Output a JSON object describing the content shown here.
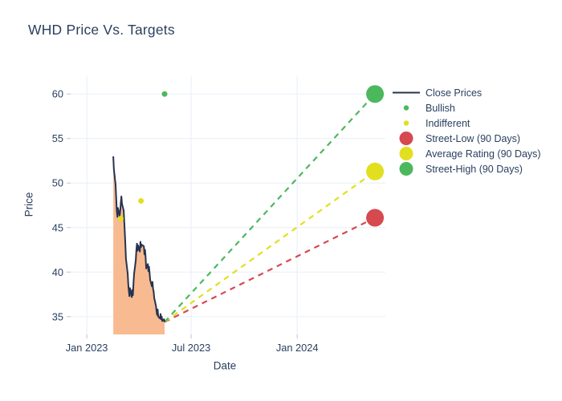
{
  "title": "WHD Price Vs. Targets",
  "chart_data": {
    "type": "line",
    "title": "WHD Price Vs. Targets",
    "xlabel": "Date",
    "ylabel": "Price",
    "legend_position": "right",
    "colors": {
      "close_line": "#26334f",
      "fill": "#f8ba90",
      "green": "#4bb85e",
      "yellow": "#e2df20",
      "red": "#d5494f",
      "grid": "#ebf0f8",
      "tick": "#c3cede",
      "text": "#2a3f5f",
      "background": "#ffffff"
    },
    "axes": {
      "x_domain": [
        "2022-12-04",
        "2024-06-02"
      ],
      "y_domain": [
        33,
        62
      ],
      "x_ticks": [
        {
          "label": "Jan 2023",
          "date": "2023-01-01"
        },
        {
          "label": "Jul 2023",
          "date": "2023-07-01"
        },
        {
          "label": "Jan 2024",
          "date": "2024-01-01"
        }
      ],
      "y_ticks": [
        35,
        40,
        45,
        50,
        55,
        60
      ],
      "grid": true
    },
    "series": [
      {
        "name": "Close Prices",
        "type": "line",
        "fill": "tozeroy",
        "color_key": "close_line",
        "points": [
          [
            "2023-02-16",
            53.0
          ],
          [
            "2023-02-17",
            51.6
          ],
          [
            "2023-02-20",
            49.8
          ],
          [
            "2023-02-21",
            48.4
          ],
          [
            "2023-02-22",
            47.0
          ],
          [
            "2023-02-23",
            46.2
          ],
          [
            "2023-02-24",
            47.2
          ],
          [
            "2023-02-27",
            46.3
          ],
          [
            "2023-02-28",
            46.8
          ],
          [
            "2023-03-01",
            47.8
          ],
          [
            "2023-03-02",
            48.5
          ],
          [
            "2023-03-03",
            47.7
          ],
          [
            "2023-03-06",
            46.9
          ],
          [
            "2023-03-07",
            45.6
          ],
          [
            "2023-03-08",
            44.4
          ],
          [
            "2023-03-09",
            43.0
          ],
          [
            "2023-03-10",
            41.5
          ],
          [
            "2023-03-13",
            39.8
          ],
          [
            "2023-03-14",
            38.6
          ],
          [
            "2023-03-15",
            37.9
          ],
          [
            "2023-03-16",
            37.3
          ],
          [
            "2023-03-17",
            38.2
          ],
          [
            "2023-03-20",
            37.2
          ],
          [
            "2023-03-21",
            38.0
          ],
          [
            "2023-03-22",
            37.4
          ],
          [
            "2023-03-23",
            38.8
          ],
          [
            "2023-03-24",
            39.8
          ],
          [
            "2023-03-27",
            41.3
          ],
          [
            "2023-03-28",
            42.4
          ],
          [
            "2023-03-29",
            43.2
          ],
          [
            "2023-03-30",
            42.4
          ],
          [
            "2023-03-31",
            43.0
          ],
          [
            "2023-04-03",
            42.3
          ],
          [
            "2023-04-04",
            43.4
          ],
          [
            "2023-04-05",
            42.8
          ],
          [
            "2023-04-06",
            43.1
          ],
          [
            "2023-04-10",
            42.9
          ],
          [
            "2023-04-11",
            42.0
          ],
          [
            "2023-04-12",
            42.5
          ],
          [
            "2023-04-13",
            41.8
          ],
          [
            "2023-04-14",
            40.4
          ],
          [
            "2023-04-17",
            40.9
          ],
          [
            "2023-04-18",
            40.1
          ],
          [
            "2023-04-19",
            40.6
          ],
          [
            "2023-04-20",
            39.8
          ],
          [
            "2023-04-21",
            39.1
          ],
          [
            "2023-04-24",
            38.4
          ],
          [
            "2023-04-25",
            38.9
          ],
          [
            "2023-04-26",
            38.1
          ],
          [
            "2023-04-27",
            37.8
          ],
          [
            "2023-04-28",
            37.1
          ],
          [
            "2023-05-01",
            36.2
          ],
          [
            "2023-05-02",
            35.6
          ],
          [
            "2023-05-03",
            35.2
          ],
          [
            "2023-05-04",
            35.8
          ],
          [
            "2023-05-05",
            35.0
          ],
          [
            "2023-05-08",
            34.8
          ],
          [
            "2023-05-09",
            35.3
          ],
          [
            "2023-05-10",
            34.7
          ],
          [
            "2023-05-11",
            35.0
          ],
          [
            "2023-05-12",
            34.5
          ],
          [
            "2023-05-15",
            34.7
          ],
          [
            "2023-05-16",
            34.4
          ]
        ]
      },
      {
        "name": "Bullish",
        "type": "scatter",
        "color_key": "green",
        "marker_radius": 3.5,
        "points": [
          [
            "2023-05-16",
            60.0
          ]
        ]
      },
      {
        "name": "Indifferent",
        "type": "scatter",
        "color_key": "yellow",
        "marker_radius": 3.5,
        "points": [
          [
            "2023-03-01",
            46.0
          ],
          [
            "2023-04-05",
            48.0
          ]
        ]
      },
      {
        "name": "Street-Low (90 Days)",
        "type": "target",
        "color_key": "red",
        "marker_radius": 11,
        "dash": "7 6",
        "points": [
          [
            "2024-05-15",
            46.1
          ]
        ]
      },
      {
        "name": "Average Rating (90 Days)",
        "type": "target",
        "color_key": "yellow",
        "marker_radius": 11,
        "dash": "7 6",
        "points": [
          [
            "2024-05-15",
            51.3
          ]
        ]
      },
      {
        "name": "Street-High (90 Days)",
        "type": "target",
        "color_key": "green",
        "marker_radius": 11,
        "dash": "7 6",
        "points": [
          [
            "2024-05-15",
            60.0
          ]
        ]
      }
    ],
    "projection_origin": [
      "2023-05-16",
      34.4
    ],
    "legend": [
      {
        "label": "Close Prices",
        "symbol": "line",
        "color_key": "close_line"
      },
      {
        "label": "Bullish",
        "symbol": "dot-small",
        "color_key": "green"
      },
      {
        "label": "Indifferent",
        "symbol": "dot-small",
        "color_key": "yellow"
      },
      {
        "label": "Street-Low (90 Days)",
        "symbol": "dot-large",
        "color_key": "red"
      },
      {
        "label": "Average Rating (90 Days)",
        "symbol": "dot-large",
        "color_key": "yellow"
      },
      {
        "label": "Street-High (90 Days)",
        "symbol": "dot-large",
        "color_key": "green"
      }
    ]
  }
}
